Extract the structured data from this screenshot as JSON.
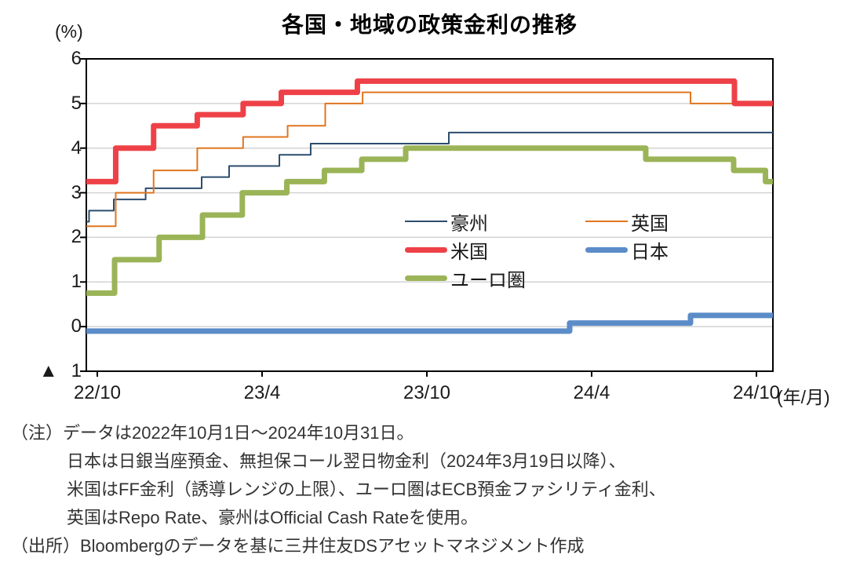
{
  "chart_data": {
    "type": "line",
    "subtype": "step",
    "title": "各国・地域の政策金利の推移",
    "ylabel": "(%)",
    "xlabel": "(年/月)",
    "ylim": [
      -1,
      6
    ],
    "xlim_months": [
      0,
      25
    ],
    "x_start": "2022/10",
    "x_end": "2024/10",
    "grid": "horizontal",
    "legend_position": "inside-center-right",
    "colors": {
      "grid": "#d3d3d3",
      "axis": "#000000"
    },
    "y_ticks": [
      {
        "label": "6",
        "v": 6
      },
      {
        "label": "5",
        "v": 5
      },
      {
        "label": "4",
        "v": 4
      },
      {
        "label": "3",
        "v": 3
      },
      {
        "label": "2",
        "v": 2
      },
      {
        "label": "1",
        "v": 1
      },
      {
        "label": "0",
        "v": 0
      },
      {
        "label": "1",
        "prefix": "▲",
        "v": -1
      }
    ],
    "x_ticks": [
      {
        "label": "22/10",
        "t": 0.4
      },
      {
        "label": "23/4",
        "t": 6.4
      },
      {
        "label": "23/10",
        "t": 12.4
      },
      {
        "label": "24/4",
        "t": 18.4
      },
      {
        "label": "24/10",
        "t": 24.4
      }
    ],
    "series": [
      {
        "id": "australia",
        "name": "豪州",
        "color": "#2B4D6E",
        "stroke_width": 2,
        "points": [
          [
            0,
            2.35
          ],
          [
            0.1,
            2.6
          ],
          [
            1.0,
            2.85
          ],
          [
            2.16,
            3.1
          ],
          [
            4.2,
            3.35
          ],
          [
            5.2,
            3.6
          ],
          [
            7.03,
            3.85
          ],
          [
            8.17,
            4.1
          ],
          [
            13.2,
            4.35
          ]
        ]
      },
      {
        "id": "uk",
        "name": "英国",
        "color": "#E0761F",
        "stroke_width": 2,
        "points": [
          [
            0,
            2.25
          ],
          [
            1.07,
            3.0
          ],
          [
            2.45,
            3.5
          ],
          [
            4.04,
            4.0
          ],
          [
            5.71,
            4.25
          ],
          [
            7.33,
            4.5
          ],
          [
            8.7,
            5.0
          ],
          [
            10.06,
            5.25
          ],
          [
            22.0,
            5.0
          ]
        ]
      },
      {
        "id": "us",
        "name": "米国",
        "color": "#EE4147",
        "stroke_width": 7,
        "points": [
          [
            0,
            3.25
          ],
          [
            1.07,
            4.0
          ],
          [
            2.45,
            4.5
          ],
          [
            4.04,
            4.75
          ],
          [
            5.71,
            5.0
          ],
          [
            7.1,
            5.25
          ],
          [
            9.87,
            5.5
          ],
          [
            23.6,
            5.0
          ]
        ]
      },
      {
        "id": "japan",
        "name": "日本",
        "color": "#5B8CC8",
        "stroke_width": 7,
        "points": [
          [
            0,
            -0.1
          ],
          [
            17.6,
            0.08
          ],
          [
            22.0,
            0.25
          ]
        ]
      },
      {
        "id": "eurozone",
        "name": "ユーロ圏",
        "color": "#9BB457",
        "stroke_width": 7,
        "points": [
          [
            0,
            0.75
          ],
          [
            1.03,
            1.5
          ],
          [
            2.65,
            2.0
          ],
          [
            4.23,
            2.5
          ],
          [
            5.68,
            3.0
          ],
          [
            7.3,
            3.25
          ],
          [
            8.67,
            3.5
          ],
          [
            10.03,
            3.75
          ],
          [
            11.63,
            4.0
          ],
          [
            20.37,
            3.75
          ],
          [
            23.57,
            3.5
          ],
          [
            24.73,
            3.25
          ]
        ]
      }
    ]
  },
  "notes": {
    "lines": [
      "（注）データは2022年10月1日～2024年10月31日。",
      "日本は日銀当座預金、無担保コール翌日物金利（2024年3月19日以降）、",
      "米国はFF金利（誘導レンジの上限）、ユーロ圏はECB預金ファシリティ金利、",
      "英国はRepo Rate、豪州はOfficial Cash Rateを使用。"
    ],
    "source": "（出所）Bloombergのデータを基に三井住友DSアセットマネジメント作成"
  }
}
